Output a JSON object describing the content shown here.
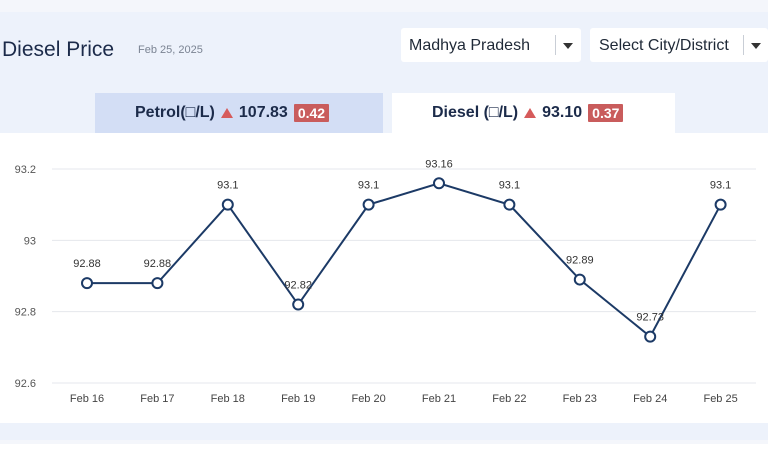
{
  "header": {
    "title": "Diesel Price",
    "date": "Feb 25, 2025",
    "state_select": "Madhya Pradesh",
    "city_select": "Select City/District"
  },
  "tabs": {
    "petrol": {
      "label": "Petrol(□/L)",
      "price": "107.83",
      "change": "0.42"
    },
    "diesel": {
      "label": "Diesel (□/L)",
      "price": "93.10",
      "change": "0.37"
    }
  },
  "colors": {
    "line": "#1c3a66",
    "up": "#d65b5b",
    "badge": "#c95c5c",
    "active_tab": "#ffffff",
    "inactive_tab": "#d3def5"
  },
  "chart_data": {
    "type": "line",
    "categories": [
      "Feb 16",
      "Feb 17",
      "Feb 18",
      "Feb 19",
      "Feb 20",
      "Feb 21",
      "Feb 22",
      "Feb 23",
      "Feb 24",
      "Feb 25"
    ],
    "values": [
      92.88,
      92.88,
      93.1,
      92.82,
      93.1,
      93.16,
      93.1,
      92.89,
      92.73,
      93.1
    ],
    "data_labels": [
      "92.88",
      "92.88",
      "93.1",
      "92.82",
      "93.1",
      "93.16",
      "93.1",
      "92.89",
      "92.73",
      "93.1"
    ],
    "yticks": [
      "93.2",
      "93",
      "92.8",
      "92.6"
    ],
    "ytick_values": [
      93.2,
      93.0,
      92.8,
      92.6
    ],
    "ylim": [
      92.6,
      93.2
    ],
    "grid": true
  }
}
